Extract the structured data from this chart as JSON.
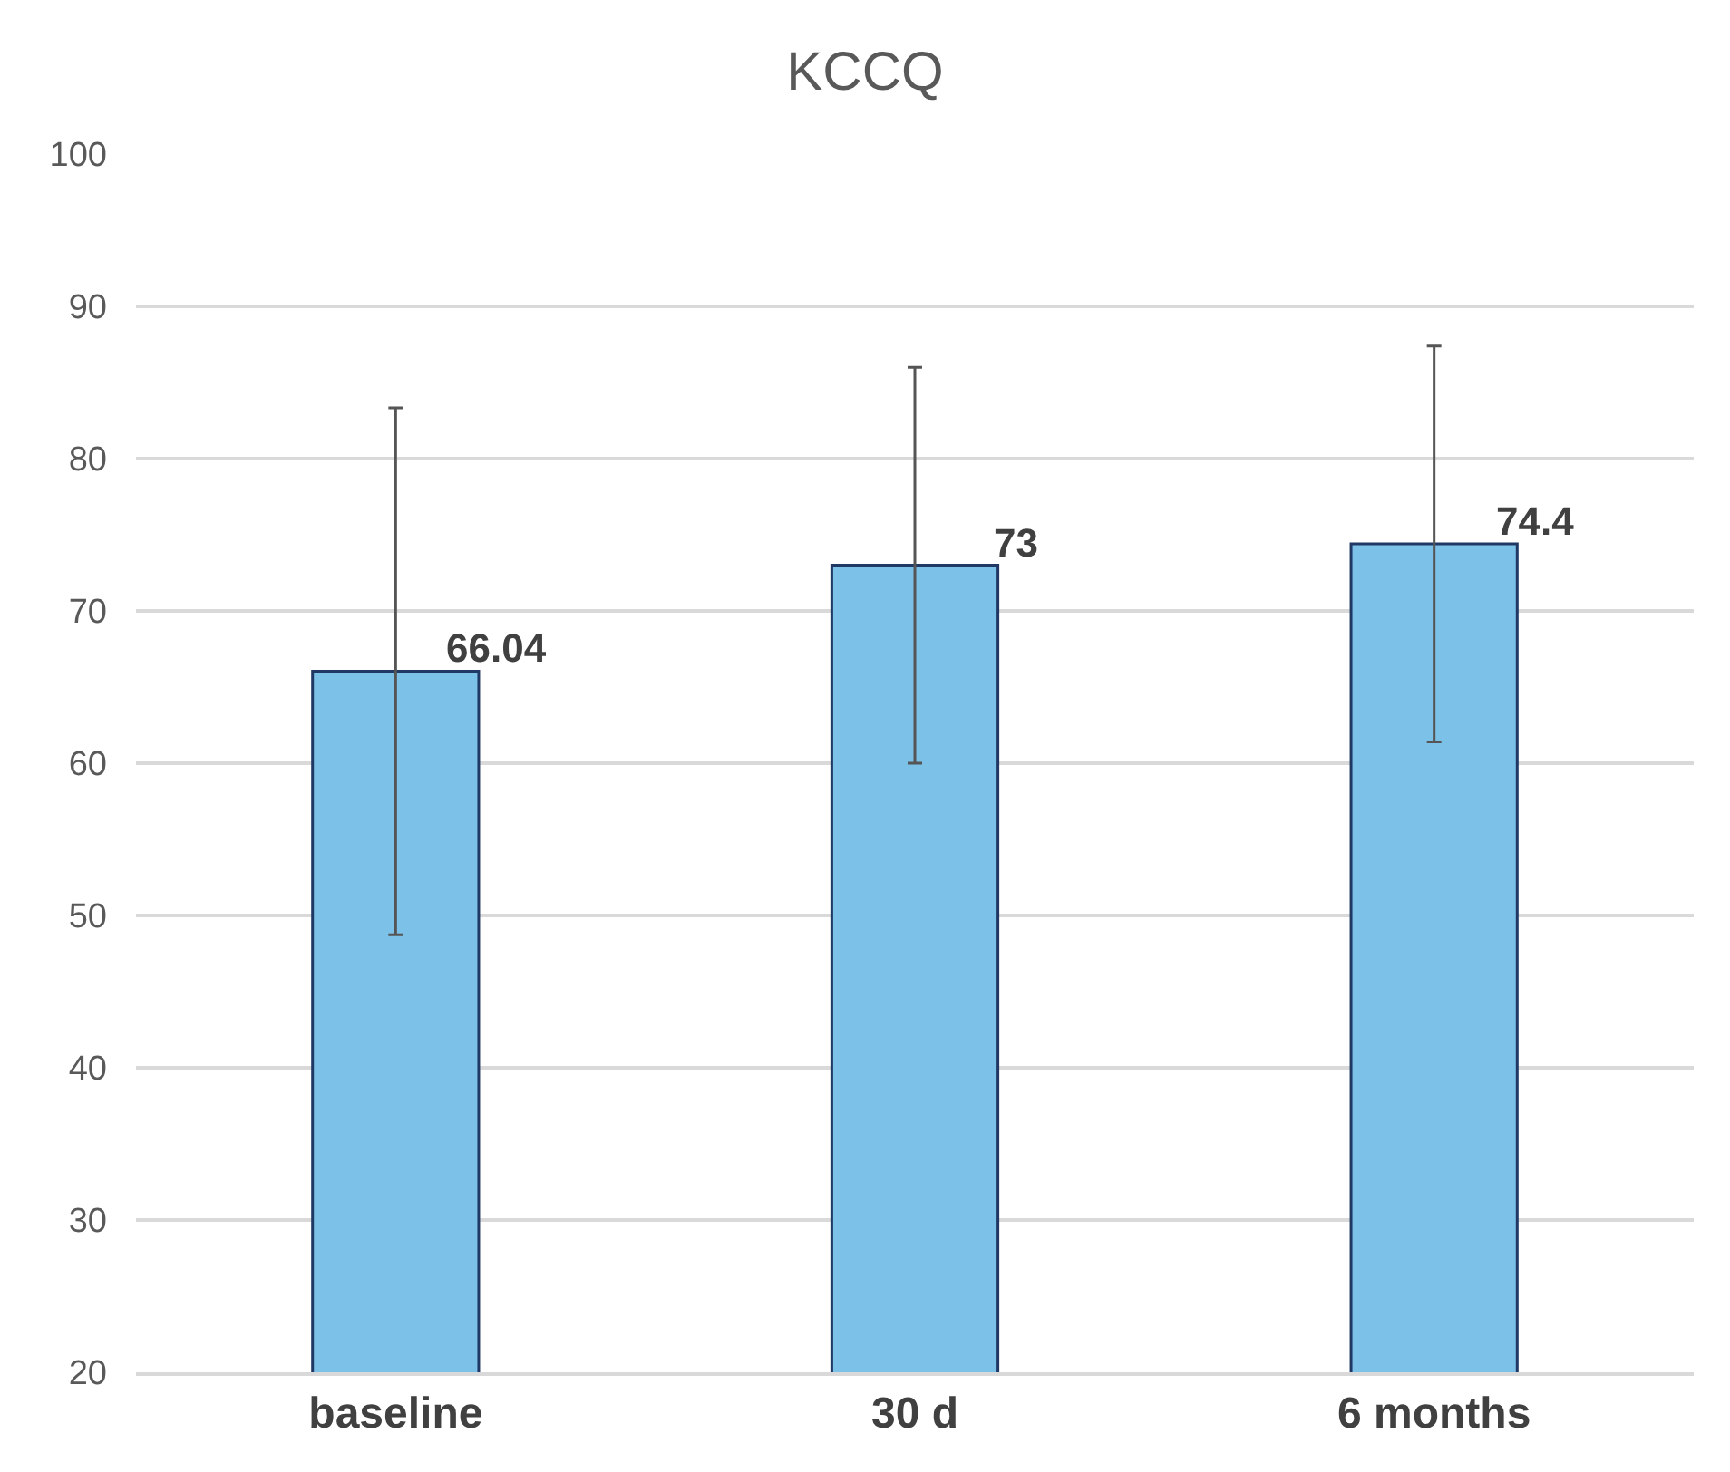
{
  "chart_data": {
    "type": "bar",
    "title": "KCCQ",
    "categories": [
      "baseline",
      "30 d",
      "6 months"
    ],
    "values": [
      66.04,
      73,
      74.4
    ],
    "errors": [
      17.3,
      13,
      13
    ],
    "color": "#7cc1e8",
    "ylim": [
      20,
      100
    ],
    "yticks": [
      20,
      30,
      40,
      50,
      60,
      70,
      80,
      90,
      100
    ],
    "grid": "y",
    "data_labels": true,
    "legend": false
  }
}
